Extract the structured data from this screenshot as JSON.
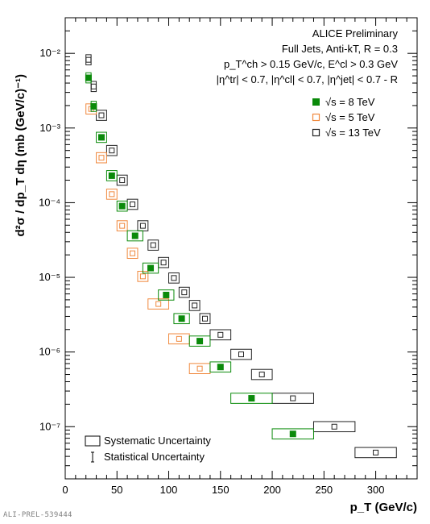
{
  "chart_data": {
    "type": "scatter",
    "xlabel": "p_T (GeV/c)",
    "ylabel": "d²σ / dp_T dη (mb (GeV/c)⁻¹)",
    "xlim": [
      0,
      340
    ],
    "ylim": [
      2e-08,
      0.03
    ],
    "y_scale": "log",
    "x_ticks": [
      0,
      50,
      100,
      150,
      200,
      250,
      300
    ],
    "y_ticks": [
      {
        "value": 1e-07,
        "label": "10⁻⁷"
      },
      {
        "value": 1e-06,
        "label": "10⁻⁶"
      },
      {
        "value": 1e-05,
        "label": "10⁻⁵"
      },
      {
        "value": 0.0001,
        "label": "10⁻⁴"
      },
      {
        "value": 0.001,
        "label": "10⁻³"
      },
      {
        "value": 0.01,
        "label": "10⁻²"
      }
    ],
    "annotations": [
      "ALICE Preliminary",
      "Full Jets, Anti-kT, R = 0.3",
      "p_T^ch > 0.15 GeV/c, E^cl > 0.3 GeV",
      "|η^tr| < 0.7, |η^cl| < 0.7, |η^jet| < 0.7 - R"
    ],
    "legend_position": "top-right",
    "series": [
      {
        "name": "√s = 8 TeV",
        "color": "#0a8a0a",
        "marker": "filled-square",
        "points": [
          {
            "x": 22.5,
            "y": 0.0047,
            "x_low": 20,
            "x_high": 25
          },
          {
            "x": 27.5,
            "y": 0.00195,
            "x_low": 25,
            "x_high": 30
          },
          {
            "x": 35,
            "y": 0.00075,
            "x_low": 30,
            "x_high": 40
          },
          {
            "x": 45,
            "y": 0.00023,
            "x_low": 40,
            "x_high": 50
          },
          {
            "x": 55,
            "y": 9e-05,
            "x_low": 50,
            "x_high": 60
          },
          {
            "x": 67.5,
            "y": 3.6e-05,
            "x_low": 60,
            "x_high": 75
          },
          {
            "x": 82.5,
            "y": 1.33e-05,
            "x_low": 75,
            "x_high": 90
          },
          {
            "x": 97.5,
            "y": 5.8e-06,
            "x_low": 90,
            "x_high": 105
          },
          {
            "x": 112.5,
            "y": 2.8e-06,
            "x_low": 105,
            "x_high": 120
          },
          {
            "x": 130,
            "y": 1.4e-06,
            "x_low": 120,
            "x_high": 140
          },
          {
            "x": 150,
            "y": 6.3e-07,
            "x_low": 140,
            "x_high": 160
          },
          {
            "x": 180,
            "y": 2.4e-07,
            "x_low": 160,
            "x_high": 200
          },
          {
            "x": 220,
            "y": 8e-08,
            "x_low": 200,
            "x_high": 240
          }
        ]
      },
      {
        "name": "√s = 5 TeV",
        "color": "#f0883c",
        "marker": "open-square",
        "points": [
          {
            "x": 25,
            "y": 0.0018,
            "x_low": 20,
            "x_high": 30
          },
          {
            "x": 35,
            "y": 0.0004,
            "x_low": 30,
            "x_high": 40
          },
          {
            "x": 45,
            "y": 0.00013,
            "x_low": 40,
            "x_high": 50
          },
          {
            "x": 55,
            "y": 4.9e-05,
            "x_low": 50,
            "x_high": 60
          },
          {
            "x": 65,
            "y": 2.1e-05,
            "x_low": 60,
            "x_high": 70
          },
          {
            "x": 75,
            "y": 1.03e-05,
            "x_low": 70,
            "x_high": 80
          },
          {
            "x": 90,
            "y": 4.4e-06,
            "x_low": 80,
            "x_high": 100
          },
          {
            "x": 110,
            "y": 1.5e-06,
            "x_low": 100,
            "x_high": 120
          },
          {
            "x": 130,
            "y": 6e-07,
            "x_low": 120,
            "x_high": 140
          }
        ]
      },
      {
        "name": "√s = 13 TeV",
        "color": "#222222",
        "marker": "open-square",
        "points": [
          {
            "x": 22.5,
            "y": 0.0082,
            "x_low": 20,
            "x_high": 25
          },
          {
            "x": 27.5,
            "y": 0.0036,
            "x_low": 25,
            "x_high": 30
          },
          {
            "x": 35,
            "y": 0.00148,
            "x_low": 30,
            "x_high": 40
          },
          {
            "x": 45,
            "y": 0.0005,
            "x_low": 40,
            "x_high": 50
          },
          {
            "x": 55,
            "y": 0.0002,
            "x_low": 50,
            "x_high": 60
          },
          {
            "x": 65,
            "y": 9.5e-05,
            "x_low": 60,
            "x_high": 70
          },
          {
            "x": 75,
            "y": 4.9e-05,
            "x_low": 70,
            "x_high": 80
          },
          {
            "x": 85,
            "y": 2.7e-05,
            "x_low": 80,
            "x_high": 90
          },
          {
            "x": 95,
            "y": 1.58e-05,
            "x_low": 90,
            "x_high": 100
          },
          {
            "x": 105,
            "y": 9.8e-06,
            "x_low": 100,
            "x_high": 110
          },
          {
            "x": 115,
            "y": 6.3e-06,
            "x_low": 110,
            "x_high": 120
          },
          {
            "x": 125,
            "y": 4.2e-06,
            "x_low": 120,
            "x_high": 130
          },
          {
            "x": 135,
            "y": 2.8e-06,
            "x_low": 130,
            "x_high": 140
          },
          {
            "x": 150,
            "y": 1.7e-06,
            "x_low": 140,
            "x_high": 160
          },
          {
            "x": 170,
            "y": 9.3e-07,
            "x_low": 160,
            "x_high": 180
          },
          {
            "x": 190,
            "y": 5e-07,
            "x_low": 180,
            "x_high": 200
          },
          {
            "x": 220,
            "y": 2.4e-07,
            "x_low": 200,
            "x_high": 240
          },
          {
            "x": 260,
            "y": 1e-07,
            "x_low": 240,
            "x_high": 280
          },
          {
            "x": 300,
            "y": 4.5e-08,
            "x_low": 280,
            "x_high": 320
          }
        ]
      }
    ],
    "uncertainty_legend": [
      "Systematic Uncertainty",
      "Statistical Uncertainty"
    ],
    "footer": "ALI-PREL-539444"
  }
}
